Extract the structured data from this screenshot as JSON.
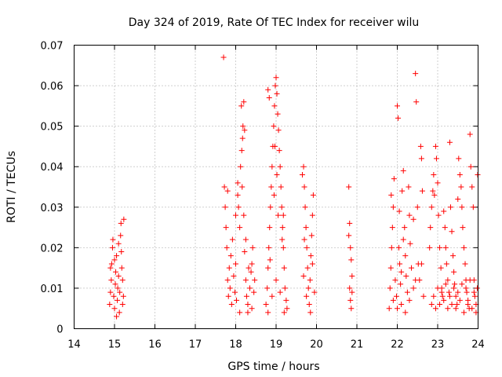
{
  "chart_data": {
    "type": "scatter",
    "title": "Day 324 of 2019, Rate Of TEC Index for receiver wilu",
    "xlabel": "GPS time / hours",
    "ylabel": "ROTI / TECUs",
    "xlim": [
      14,
      24
    ],
    "ylim": [
      0,
      0.07
    ],
    "xticks": [
      "14",
      "15",
      "16",
      "17",
      "18",
      "19",
      "20",
      "21",
      "22",
      "23",
      "24"
    ],
    "yticks": [
      "0",
      "0.01",
      "0.02",
      "0.03",
      "0.04",
      "0.05",
      "0.06",
      "0.07"
    ],
    "grid": true,
    "marker": "+",
    "color": "#ff0000",
    "series": [
      {
        "name": "ROTI",
        "points": [
          [
            14.88,
            0.006
          ],
          [
            14.9,
            0.009
          ],
          [
            14.92,
            0.012
          ],
          [
            14.93,
            0.016
          ],
          [
            14.95,
            0.02
          ],
          [
            14.96,
            0.022
          ],
          [
            14.98,
            0.008
          ],
          [
            15.0,
            0.005
          ],
          [
            15.02,
            0.011
          ],
          [
            15.03,
            0.014
          ],
          [
            15.05,
            0.018
          ],
          [
            15.07,
            0.007
          ],
          [
            15.08,
            0.01
          ],
          [
            15.1,
            0.013
          ],
          [
            15.12,
            0.004
          ],
          [
            15.13,
            0.009
          ],
          [
            15.15,
            0.023
          ],
          [
            15.16,
            0.026
          ],
          [
            15.17,
            0.019
          ],
          [
            15.18,
            0.015
          ],
          [
            15.2,
            0.012
          ],
          [
            15.22,
            0.008
          ],
          [
            15.23,
            0.027
          ],
          [
            15.05,
            0.003
          ],
          [
            14.9,
            0.015
          ],
          [
            15.1,
            0.021
          ],
          [
            15.0,
            0.017
          ],
          [
            15.2,
            0.006
          ],
          [
            17.7,
            0.067
          ],
          [
            17.72,
            0.035
          ],
          [
            17.74,
            0.03
          ],
          [
            17.76,
            0.025
          ],
          [
            17.78,
            0.02
          ],
          [
            17.8,
            0.012
          ],
          [
            17.82,
            0.008
          ],
          [
            17.84,
            0.015
          ],
          [
            17.86,
            0.01
          ],
          [
            17.88,
            0.018
          ],
          [
            17.9,
            0.006
          ],
          [
            17.92,
            0.022
          ],
          [
            17.95,
            0.013
          ],
          [
            17.98,
            0.009
          ],
          [
            18.0,
            0.016
          ],
          [
            18.02,
            0.007
          ],
          [
            18.05,
            0.033
          ],
          [
            18.07,
            0.03
          ],
          [
            18.1,
            0.025
          ],
          [
            18.12,
            0.04
          ],
          [
            18.15,
            0.044
          ],
          [
            18.17,
            0.047
          ],
          [
            18.18,
            0.05
          ],
          [
            18.2,
            0.056
          ],
          [
            18.14,
            0.055
          ],
          [
            18.16,
            0.035
          ],
          [
            18.2,
            0.028
          ],
          [
            18.22,
            0.019
          ],
          [
            18.25,
            0.012
          ],
          [
            18.27,
            0.008
          ],
          [
            18.3,
            0.006
          ],
          [
            18.32,
            0.015
          ],
          [
            18.35,
            0.01
          ],
          [
            18.38,
            0.014
          ],
          [
            18.4,
            0.005
          ],
          [
            18.42,
            0.02
          ],
          [
            18.45,
            0.009
          ],
          [
            18.47,
            0.012
          ],
          [
            18.1,
            0.004
          ],
          [
            18.3,
            0.004
          ],
          [
            17.8,
            0.034
          ],
          [
            18.05,
            0.036
          ],
          [
            18.22,
            0.049
          ],
          [
            18.0,
            0.028
          ],
          [
            18.25,
            0.022
          ],
          [
            18.4,
            0.016
          ],
          [
            18.75,
            0.006
          ],
          [
            18.78,
            0.01
          ],
          [
            18.8,
            0.015
          ],
          [
            18.82,
            0.02
          ],
          [
            18.84,
            0.025
          ],
          [
            18.86,
            0.03
          ],
          [
            18.88,
            0.035
          ],
          [
            18.9,
            0.04
          ],
          [
            18.92,
            0.045
          ],
          [
            18.94,
            0.05
          ],
          [
            18.96,
            0.055
          ],
          [
            18.98,
            0.06
          ],
          [
            19.0,
            0.062
          ],
          [
            19.02,
            0.058
          ],
          [
            19.04,
            0.053
          ],
          [
            19.06,
            0.049
          ],
          [
            19.08,
            0.044
          ],
          [
            19.1,
            0.04
          ],
          [
            19.12,
            0.035
          ],
          [
            19.14,
            0.03
          ],
          [
            19.16,
            0.025
          ],
          [
            19.18,
            0.02
          ],
          [
            19.2,
            0.015
          ],
          [
            19.22,
            0.01
          ],
          [
            19.25,
            0.007
          ],
          [
            19.27,
            0.005
          ],
          [
            18.8,
            0.004
          ],
          [
            18.9,
            0.008
          ],
          [
            19.0,
            0.012
          ],
          [
            19.1,
            0.009
          ],
          [
            19.2,
            0.004
          ],
          [
            18.85,
            0.017
          ],
          [
            18.95,
            0.033
          ],
          [
            19.05,
            0.028
          ],
          [
            19.15,
            0.022
          ],
          [
            18.8,
            0.059
          ],
          [
            18.83,
            0.057
          ],
          [
            19.02,
            0.038
          ],
          [
            18.97,
            0.045
          ],
          [
            19.18,
            0.028
          ],
          [
            19.65,
            0.038
          ],
          [
            19.68,
            0.04
          ],
          [
            19.7,
            0.035
          ],
          [
            19.72,
            0.03
          ],
          [
            19.74,
            0.025
          ],
          [
            19.76,
            0.02
          ],
          [
            19.78,
            0.015
          ],
          [
            19.8,
            0.01
          ],
          [
            19.82,
            0.006
          ],
          [
            19.84,
            0.012
          ],
          [
            19.86,
            0.018
          ],
          [
            19.88,
            0.023
          ],
          [
            19.9,
            0.028
          ],
          [
            19.92,
            0.033
          ],
          [
            19.75,
            0.008
          ],
          [
            19.85,
            0.004
          ],
          [
            19.7,
            0.022
          ],
          [
            19.9,
            0.016
          ],
          [
            19.68,
            0.013
          ],
          [
            19.95,
            0.009
          ],
          [
            20.8,
            0.035
          ],
          [
            20.82,
            0.026
          ],
          [
            20.84,
            0.02
          ],
          [
            20.86,
            0.017
          ],
          [
            20.88,
            0.013
          ],
          [
            20.82,
            0.01
          ],
          [
            20.84,
            0.007
          ],
          [
            20.86,
            0.005
          ],
          [
            20.8,
            0.023
          ],
          [
            20.88,
            0.009
          ],
          [
            21.8,
            0.005
          ],
          [
            21.82,
            0.01
          ],
          [
            21.84,
            0.015
          ],
          [
            21.86,
            0.02
          ],
          [
            21.88,
            0.025
          ],
          [
            21.9,
            0.03
          ],
          [
            21.92,
            0.037
          ],
          [
            21.95,
            0.012
          ],
          [
            21.98,
            0.008
          ],
          [
            22.0,
            0.055
          ],
          [
            22.02,
            0.052
          ],
          [
            22.04,
            0.02
          ],
          [
            22.06,
            0.016
          ],
          [
            22.08,
            0.011
          ],
          [
            22.1,
            0.006
          ],
          [
            22.12,
            0.034
          ],
          [
            22.15,
            0.039
          ],
          [
            22.18,
            0.025
          ],
          [
            22.2,
            0.018
          ],
          [
            22.22,
            0.013
          ],
          [
            22.25,
            0.009
          ],
          [
            22.28,
            0.035
          ],
          [
            22.3,
            0.028
          ],
          [
            22.32,
            0.021
          ],
          [
            22.35,
            0.015
          ],
          [
            22.4,
            0.01
          ],
          [
            22.45,
            0.063
          ],
          [
            22.47,
            0.056
          ],
          [
            22.5,
            0.03
          ],
          [
            22.52,
            0.016
          ],
          [
            22.55,
            0.012
          ],
          [
            22.58,
            0.045
          ],
          [
            22.6,
            0.042
          ],
          [
            22.62,
            0.034
          ],
          [
            22.65,
            0.008
          ],
          [
            21.9,
            0.007
          ],
          [
            22.0,
            0.005
          ],
          [
            22.1,
            0.014
          ],
          [
            22.2,
            0.004
          ],
          [
            22.3,
            0.007
          ],
          [
            22.4,
            0.027
          ],
          [
            22.05,
            0.029
          ],
          [
            21.85,
            0.033
          ],
          [
            22.15,
            0.022
          ],
          [
            22.45,
            0.012
          ],
          [
            22.6,
            0.016
          ],
          [
            22.8,
            0.02
          ],
          [
            22.82,
            0.025
          ],
          [
            22.85,
            0.03
          ],
          [
            22.88,
            0.034
          ],
          [
            22.9,
            0.038
          ],
          [
            22.92,
            0.033
          ],
          [
            22.95,
            0.045
          ],
          [
            22.97,
            0.042
          ],
          [
            23.0,
            0.036
          ],
          [
            23.02,
            0.028
          ],
          [
            23.05,
            0.02
          ],
          [
            23.08,
            0.015
          ],
          [
            23.1,
            0.01
          ],
          [
            23.12,
            0.008
          ],
          [
            23.15,
            0.029
          ],
          [
            23.18,
            0.025
          ],
          [
            23.2,
            0.02
          ],
          [
            23.22,
            0.016
          ],
          [
            23.25,
            0.012
          ],
          [
            23.28,
            0.009
          ],
          [
            23.3,
            0.046
          ],
          [
            23.32,
            0.03
          ],
          [
            23.35,
            0.024
          ],
          [
            23.38,
            0.018
          ],
          [
            23.4,
            0.014
          ],
          [
            23.42,
            0.011
          ],
          [
            23.45,
            0.008
          ],
          [
            23.48,
            0.006
          ],
          [
            23.5,
            0.032
          ],
          [
            23.52,
            0.042
          ],
          [
            23.55,
            0.038
          ],
          [
            23.58,
            0.035
          ],
          [
            23.6,
            0.03
          ],
          [
            23.62,
            0.025
          ],
          [
            23.65,
            0.02
          ],
          [
            23.68,
            0.016
          ],
          [
            23.7,
            0.012
          ],
          [
            23.72,
            0.009
          ],
          [
            23.75,
            0.007
          ],
          [
            23.78,
            0.005
          ],
          [
            23.8,
            0.048
          ],
          [
            23.82,
            0.04
          ],
          [
            23.85,
            0.035
          ],
          [
            23.88,
            0.03
          ],
          [
            23.9,
            0.012
          ],
          [
            23.92,
            0.008
          ],
          [
            23.95,
            0.006
          ],
          [
            23.98,
            0.01
          ],
          [
            22.85,
            0.006
          ],
          [
            22.95,
            0.005
          ],
          [
            23.05,
            0.006
          ],
          [
            23.15,
            0.007
          ],
          [
            23.25,
            0.005
          ],
          [
            23.35,
            0.006
          ],
          [
            23.45,
            0.005
          ],
          [
            23.55,
            0.007
          ],
          [
            23.65,
            0.004
          ],
          [
            23.75,
            0.006
          ],
          [
            23.85,
            0.005
          ],
          [
            23.95,
            0.004
          ],
          [
            22.9,
            0.008
          ],
          [
            23.1,
            0.009
          ],
          [
            23.3,
            0.008
          ],
          [
            23.5,
            0.009
          ],
          [
            23.7,
            0.01
          ],
          [
            23.9,
            0.009
          ],
          [
            23.0,
            0.01
          ],
          [
            23.2,
            0.011
          ],
          [
            23.4,
            0.01
          ],
          [
            23.6,
            0.011
          ],
          [
            23.8,
            0.012
          ],
          [
            23.99,
            0.038
          ]
        ]
      }
    ]
  }
}
